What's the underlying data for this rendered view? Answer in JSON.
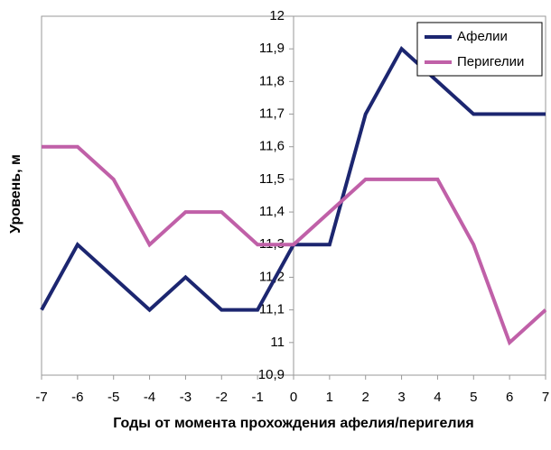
{
  "chart_data": {
    "type": "line",
    "x_label": "Годы от момента прохождения афелия/перигелия",
    "y_label": "Уровень, м",
    "x": [
      -7,
      -6,
      -5,
      -4,
      -3,
      -2,
      -1,
      0,
      1,
      2,
      3,
      4,
      5,
      6,
      7
    ],
    "series": [
      {
        "name": "Афелии",
        "color": "#1c2670",
        "values": [
          11.1,
          11.3,
          11.2,
          11.1,
          11.2,
          11.1,
          11.1,
          11.3,
          11.3,
          11.7,
          11.9,
          11.8,
          11.7,
          11.7,
          11.7
        ]
      },
      {
        "name": "Перигелии",
        "color": "#c060a8",
        "values": [
          11.6,
          11.6,
          11.5,
          11.3,
          11.4,
          11.4,
          11.3,
          11.3,
          11.4,
          11.5,
          11.5,
          11.5,
          11.3,
          11.0,
          11.1
        ]
      }
    ],
    "xlim": [
      -7,
      7
    ],
    "xticks": [
      -7,
      -6,
      -5,
      -4,
      -3,
      -2,
      -1,
      0,
      1,
      2,
      3,
      4,
      5,
      6,
      7
    ],
    "ylim": [
      10.9,
      12
    ],
    "yticks": [
      {
        "value": 10.9,
        "label": "10,9"
      },
      11,
      {
        "value": 11.1,
        "label": "11,1"
      },
      {
        "value": 11.2,
        "label": "11,2"
      },
      {
        "value": 11.3,
        "label": "11,3"
      },
      {
        "value": 11.4,
        "label": "11,4"
      },
      {
        "value": 11.5,
        "label": "11,5"
      },
      {
        "value": 11.6,
        "label": "11,6"
      },
      {
        "value": 11.7,
        "label": "11,7"
      },
      {
        "value": 11.8,
        "label": "11,8"
      },
      {
        "value": 11.9,
        "label": "11,9"
      },
      12
    ],
    "grid": false,
    "legend": "top-right"
  }
}
